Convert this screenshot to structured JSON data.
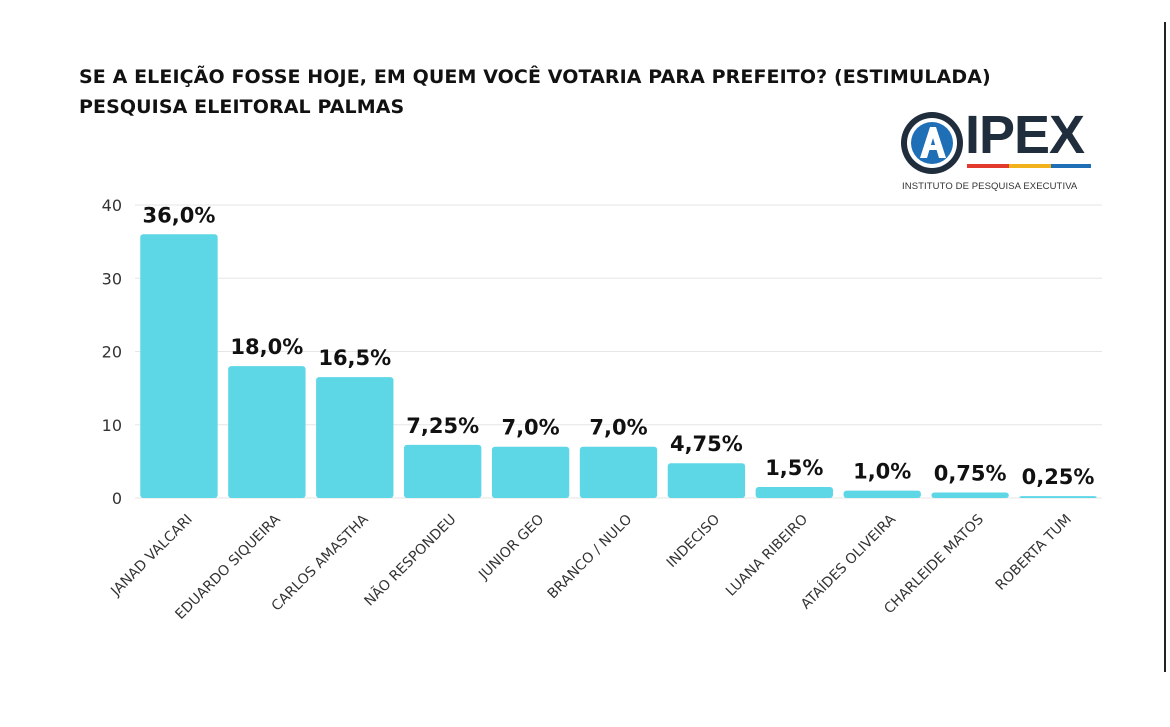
{
  "header": {
    "title_line1": "SE A ELEIÇÃO FOSSE HOJE, EM QUEM VOCÊ VOTARIA PARA PREFEITO? (ESTIMULADA)",
    "title_line2": "PESQUISA ELEITORAL PALMAS"
  },
  "logo": {
    "wordmark": "IPEX",
    "subtitle": "INSTITUTO DE PESQUISA EXECUTIVA",
    "brand_dark": "#1f2d3d",
    "brand_blue": "#1f6fb7",
    "stripe_colors": [
      "#e23b2e",
      "#f2b21b",
      "#1f6fb7"
    ]
  },
  "colors": {
    "bar": "#5dd6e6",
    "grid": "#e6e6e6",
    "text": "#111111",
    "tick": "#333333"
  },
  "chart_data": {
    "type": "bar",
    "title": "SE A ELEIÇÃO FOSSE HOJE, EM QUEM VOCÊ VOTARIA PARA PREFEITO? (ESTIMULADA)",
    "subtitle": "PESQUISA ELEITORAL PALMAS",
    "xlabel": "",
    "ylabel": "",
    "ylim": [
      0,
      40
    ],
    "yticks": [
      0,
      10,
      20,
      30,
      40
    ],
    "grid": true,
    "categories": [
      "JANAD VALCARI",
      "EDUARDO SIQUEIRA",
      "CARLOS AMASTHA",
      "NÃO RESPONDEU",
      "JUNIOR GEO",
      "BRANCO / NULO",
      "INDECISO",
      "LUANA RIBEIRO",
      "ATAÍDES OLIVEIRA",
      "CHARLEIDE MATOS",
      "ROBERTA TUM"
    ],
    "values": [
      36.0,
      18.0,
      16.5,
      7.25,
      7.0,
      7.0,
      4.75,
      1.5,
      1.0,
      0.75,
      0.25
    ],
    "labels": [
      "36,0%",
      "18,0%",
      "16,5%",
      "7,25%",
      "7,0%",
      "7,0%",
      "4,75%",
      "1,5%",
      "1,0%",
      "0,75%",
      "0,25%"
    ]
  }
}
